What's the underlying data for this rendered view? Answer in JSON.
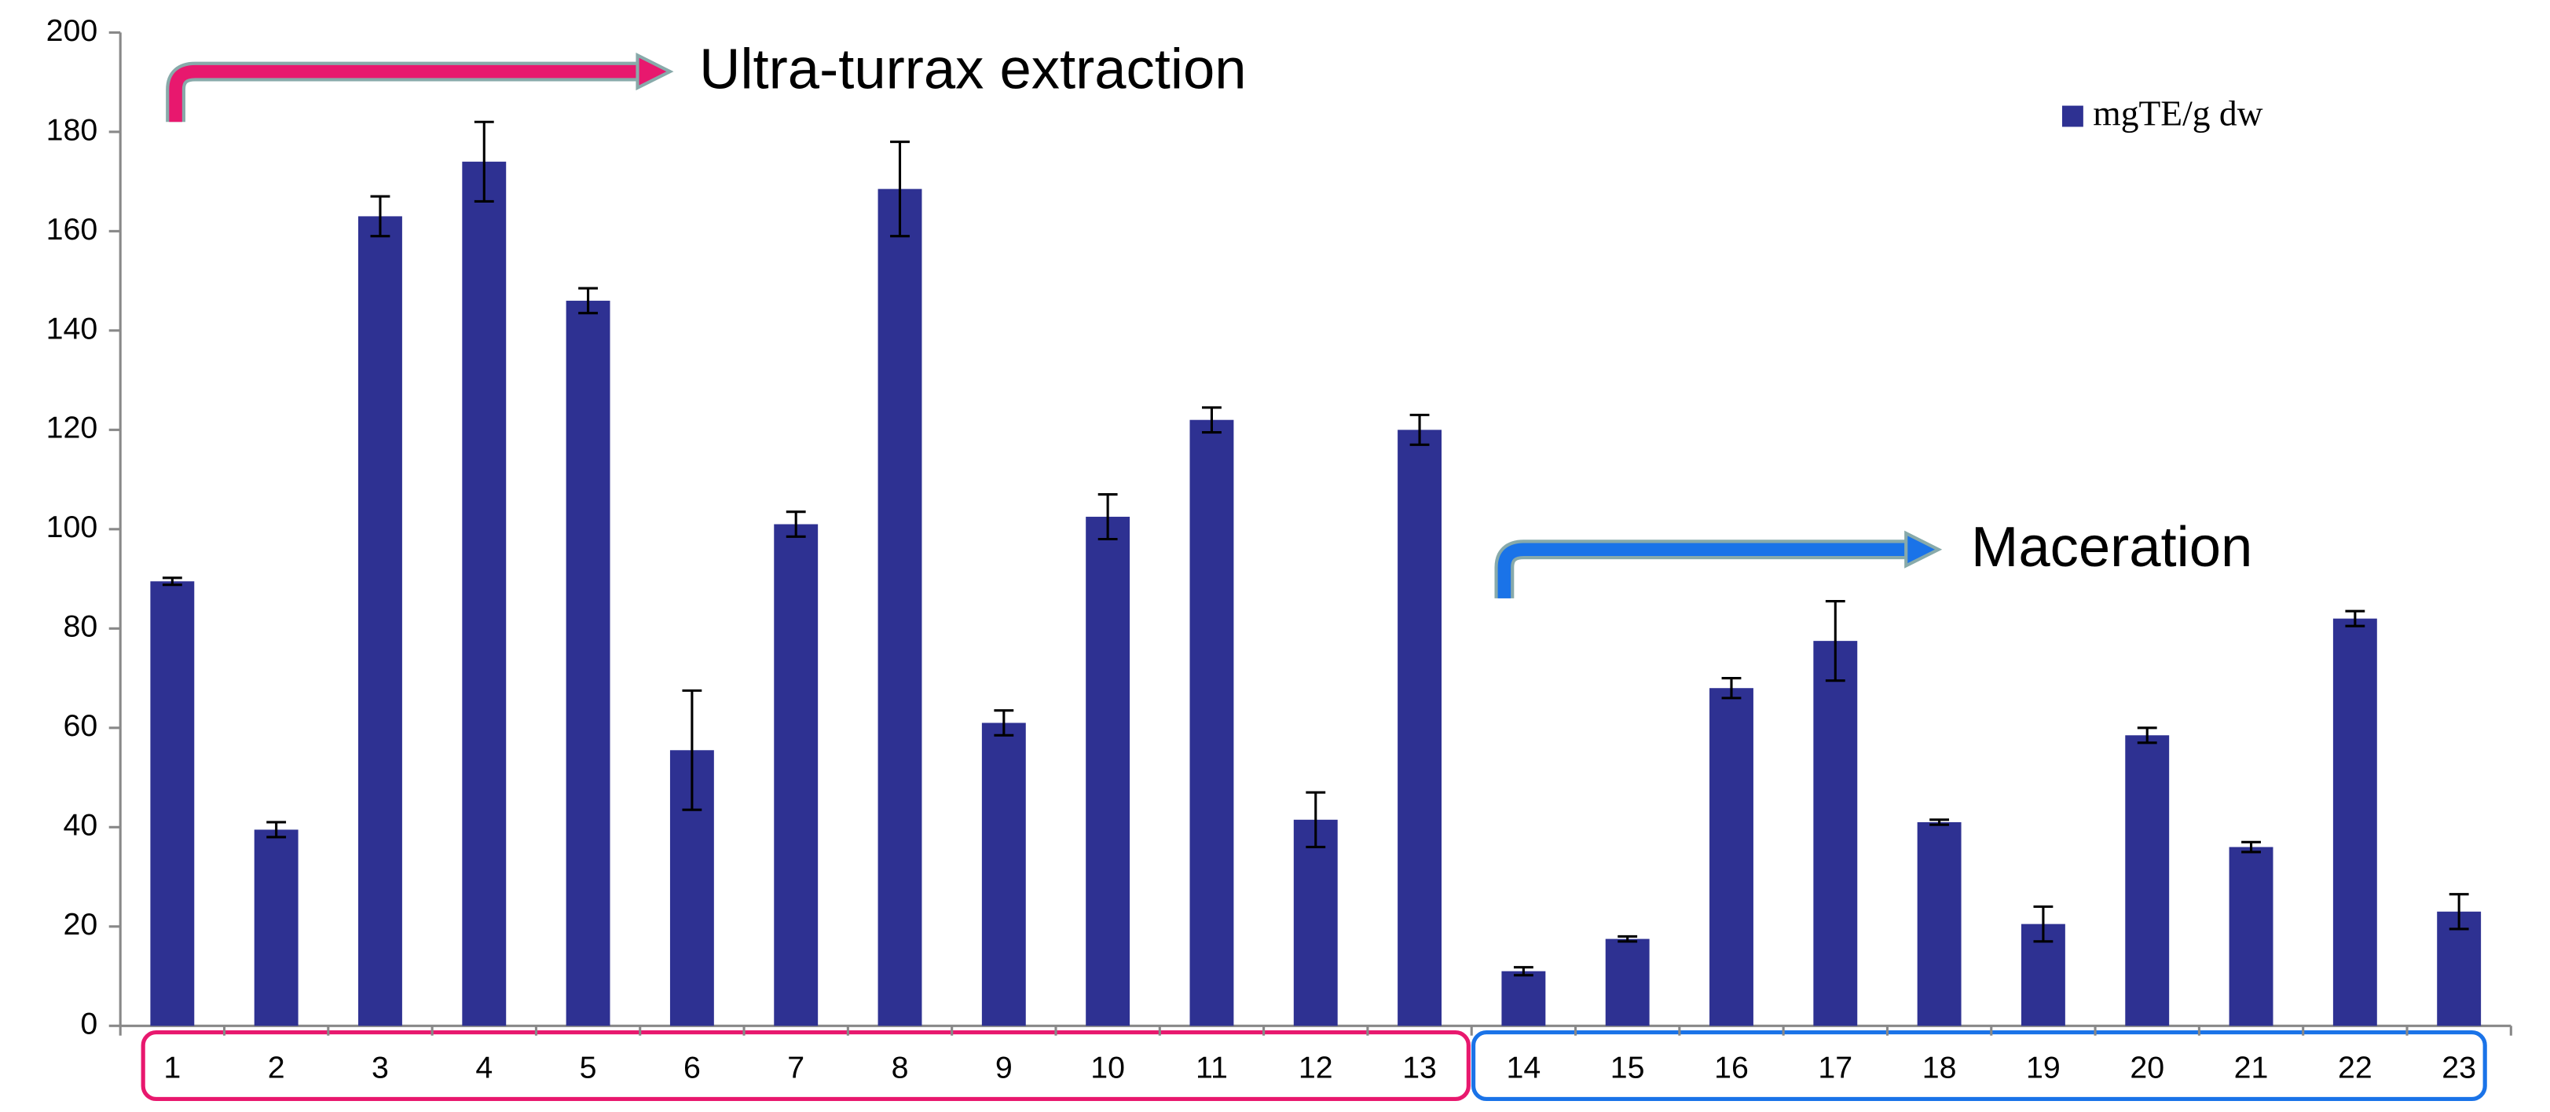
{
  "chart_data": {
    "type": "bar",
    "categories": [
      "1",
      "2",
      "3",
      "4",
      "5",
      "6",
      "7",
      "8",
      "9",
      "10",
      "11",
      "12",
      "13",
      "14",
      "15",
      "16",
      "17",
      "18",
      "19",
      "20",
      "21",
      "22",
      "23"
    ],
    "series": [
      {
        "name": "mgTE/g dw",
        "color": "#2e3192",
        "values": [
          89.5,
          39.5,
          163,
          174,
          146,
          55.5,
          101,
          168.5,
          61,
          102.5,
          122,
          41.5,
          120,
          11,
          17.5,
          68,
          77.5,
          41,
          20.5,
          58.5,
          36,
          82,
          23
        ],
        "errors": [
          0.7,
          1.5,
          4,
          8,
          2.5,
          12,
          2.5,
          9.5,
          2.5,
          4.5,
          2.5,
          5.5,
          3,
          0.8,
          0.5,
          2,
          8,
          0.5,
          3.5,
          1.5,
          1,
          1.5,
          3.5
        ]
      }
    ],
    "ylim": [
      0,
      200
    ],
    "yticks": [
      0,
      20,
      40,
      60,
      80,
      100,
      120,
      140,
      160,
      180,
      200
    ],
    "legend": "top-right",
    "annotations": [
      {
        "text": "Ultra-turrax extraction"
      },
      {
        "text": "Maceration"
      }
    ]
  }
}
